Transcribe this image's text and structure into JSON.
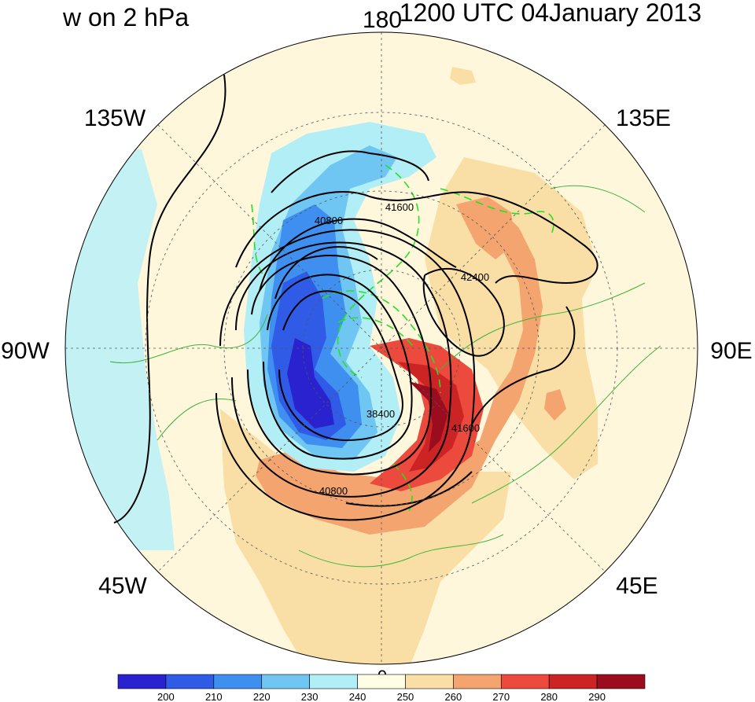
{
  "title_left": "w on 2 hPa",
  "title_right": "1200 UTC 04January 2013",
  "longitude_labels": {
    "top": "180",
    "top_left": "135W",
    "top_right": "135E",
    "left": "90W",
    "right": "90E",
    "bottom_left": "45W",
    "bottom_right": "45E",
    "bottom": "0"
  },
  "contour_labels": [
    "40800",
    "41600",
    "42400",
    "38400",
    "41600",
    "40800"
  ],
  "colorbar": {
    "tick_labels": [
      "200",
      "210",
      "220",
      "230",
      "240",
      "250",
      "260",
      "270",
      "280",
      "290"
    ],
    "colors": [
      "#2a22cf",
      "#2f5be6",
      "#3f8ff0",
      "#6fc6f3",
      "#b2eef5",
      "#fffde4",
      "#f9dfa6",
      "#f4a46e",
      "#ec4a3c",
      "#cc2325",
      "#9b0c1e"
    ]
  },
  "colors": {
    "background": "#fef7dc",
    "coastline": "#3cb43c",
    "contour_line": "#000000",
    "green_contour": "#25e025",
    "grid": "#555555"
  }
}
